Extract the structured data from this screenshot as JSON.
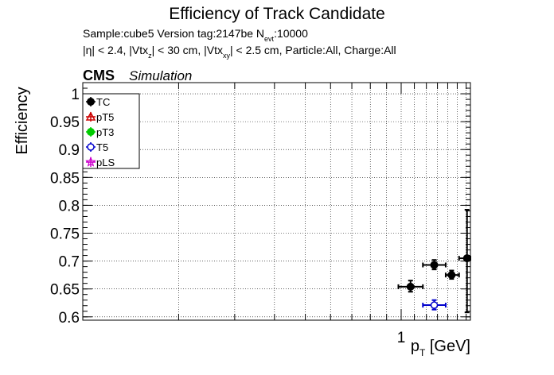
{
  "chart_data": {
    "type": "scatter",
    "title": "Efficiency of Track Candidate",
    "subtitle_line1": {
      "pre": "Sample:cube5   Version tag:2147be  N",
      "sub": "evt",
      "post": ":10000"
    },
    "subtitle_line2": {
      "p1": "|η| < 2.4, |Vtx",
      "s1": "z",
      "p2": "| < 30 cm, |Vtx",
      "s2": "xy",
      "p3": "| < 2.5 cm, Particle:All, Charge:All"
    },
    "cms_label": "CMS",
    "cms_sublabel": "Simulation",
    "ylabel": "Efficiency",
    "xlabel": {
      "main": "p",
      "sub": "T",
      "unit": " [GeV]"
    },
    "x_scale": "log",
    "xlim": [
      0.1,
      1.65
    ],
    "ylim": [
      0.594,
      1.02
    ],
    "x_tick_labels": [
      {
        "value": 1,
        "label": "1"
      }
    ],
    "y_ticks": [
      {
        "value": 0.6,
        "label": "0.6"
      },
      {
        "value": 0.65,
        "label": "0.65"
      },
      {
        "value": 0.7,
        "label": "0.7"
      },
      {
        "value": 0.75,
        "label": "0.75"
      },
      {
        "value": 0.8,
        "label": "0.8"
      },
      {
        "value": 0.85,
        "label": "0.85"
      },
      {
        "value": 0.9,
        "label": "0.9"
      },
      {
        "value": 0.95,
        "label": "0.95"
      },
      {
        "value": 1,
        "label": "1"
      }
    ],
    "grid": true,
    "legend_position": "top-left",
    "series": [
      {
        "name": "TC",
        "color": "#000000",
        "marker": "filled-circle",
        "points": [
          {
            "x": 1.07,
            "xlo": 0.98,
            "xhi": 1.17,
            "y": 0.654,
            "ylo": 0.645,
            "yhi": 0.665
          },
          {
            "x": 1.27,
            "xlo": 1.17,
            "xhi": 1.38,
            "y": 0.693,
            "ylo": 0.685,
            "yhi": 0.702
          },
          {
            "x": 1.44,
            "xlo": 1.38,
            "xhi": 1.52,
            "y": 0.675,
            "ylo": 0.668,
            "yhi": 0.683
          },
          {
            "x": 1.61,
            "xlo": 1.52,
            "xhi": 1.7,
            "y": 0.705,
            "ylo": 0.608,
            "yhi": 0.792
          }
        ]
      },
      {
        "name": "pT5",
        "color": "#cc0000",
        "marker": "open-triangle",
        "points": []
      },
      {
        "name": "pT3",
        "color": "#00cc00",
        "marker": "filled-circle",
        "points": []
      },
      {
        "name": "T5",
        "color": "#0000cc",
        "marker": "open-circle",
        "points": [
          {
            "x": 1.27,
            "xlo": 1.17,
            "xhi": 1.38,
            "y": 0.621,
            "ylo": 0.613,
            "yhi": 0.63
          }
        ]
      },
      {
        "name": "pLS",
        "color": "#cc00cc",
        "marker": "open-star",
        "points": []
      }
    ]
  }
}
